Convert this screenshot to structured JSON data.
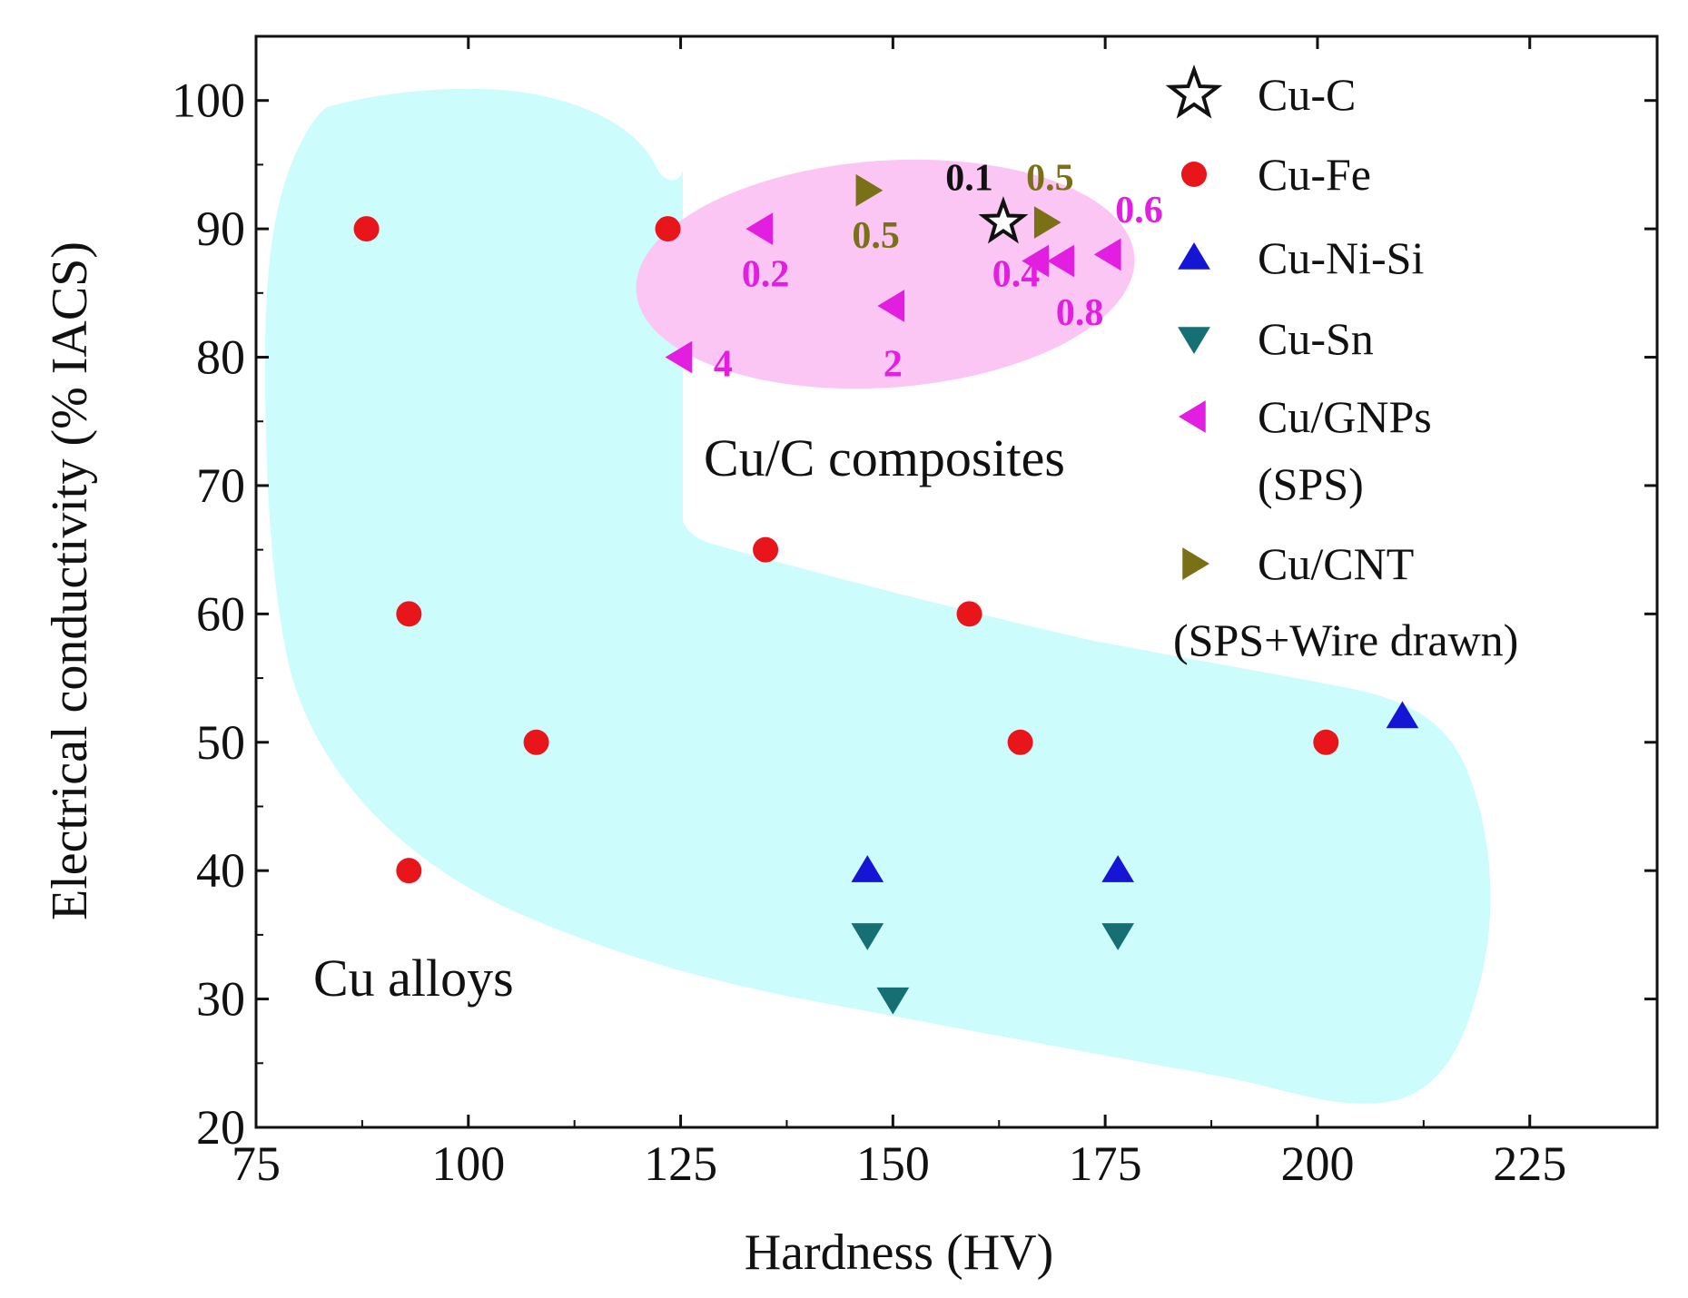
{
  "chart_data": {
    "type": "scatter",
    "title": "",
    "xlabel": "Hardness (HV)",
    "ylabel": "Electrical conductivity (% IACS)",
    "xlim": [
      75,
      240
    ],
    "ylim": [
      20,
      105
    ],
    "xticks": [
      75,
      100,
      125,
      150,
      175,
      200,
      225
    ],
    "yticks": [
      20,
      30,
      40,
      50,
      60,
      70,
      80,
      90,
      100
    ],
    "legend_position": "top-right",
    "series": [
      {
        "name": "Cu-C",
        "marker": "star",
        "color": "#ffffff",
        "stroke": "#111111",
        "points": [
          {
            "x": 163,
            "y": 90.5
          }
        ]
      },
      {
        "name": "Cu-Fe",
        "marker": "circle",
        "color": "#e8151b",
        "points": [
          {
            "x": 88,
            "y": 90
          },
          {
            "x": 123.5,
            "y": 90
          },
          {
            "x": 93,
            "y": 60
          },
          {
            "x": 135,
            "y": 65
          },
          {
            "x": 159,
            "y": 60
          },
          {
            "x": 108,
            "y": 50
          },
          {
            "x": 165,
            "y": 50
          },
          {
            "x": 201,
            "y": 50
          },
          {
            "x": 93,
            "y": 40
          }
        ]
      },
      {
        "name": "Cu-Ni-Si",
        "marker": "triangle-up",
        "color": "#1515d6",
        "points": [
          {
            "x": 147,
            "y": 40
          },
          {
            "x": 176.5,
            "y": 40
          },
          {
            "x": 210,
            "y": 52
          }
        ]
      },
      {
        "name": "Cu-Sn",
        "marker": "triangle-down",
        "color": "#156f73",
        "points": [
          {
            "x": 147,
            "y": 35
          },
          {
            "x": 176.5,
            "y": 35
          },
          {
            "x": 150,
            "y": 30
          }
        ]
      },
      {
        "name": "Cu/GNPs (SPS)",
        "marker": "triangle-left",
        "color": "#e21ee0",
        "points": [
          {
            "x": 134.5,
            "y": 90
          },
          {
            "x": 125,
            "y": 80
          },
          {
            "x": 150,
            "y": 84
          },
          {
            "x": 167,
            "y": 87.5
          },
          {
            "x": 170,
            "y": 87.5
          },
          {
            "x": 175.5,
            "y": 88
          }
        ]
      },
      {
        "name": "Cu/CNT (SPS+Wire drawn)",
        "marker": "triangle-right",
        "color": "#7a7016",
        "points": [
          {
            "x": 147,
            "y": 93
          },
          {
            "x": 168,
            "y": 90.5
          }
        ]
      }
    ],
    "legend": [
      {
        "label": "Cu-C",
        "marker": "star"
      },
      {
        "label": "Cu-Fe",
        "marker": "circle"
      },
      {
        "label": "Cu-Ni-Si",
        "marker": "triangle-up"
      },
      {
        "label": "Cu-Sn",
        "marker": "triangle-down"
      },
      {
        "label": "Cu/GNPs",
        "label2": "(SPS)",
        "marker": "triangle-left"
      },
      {
        "label": "Cu/CNT",
        "label2": "(SPS+Wire drawn)",
        "marker": "triangle-right"
      }
    ],
    "regions": [
      {
        "label": "Cu alloys",
        "color": "#cdfcfd"
      },
      {
        "label": "Cu/C composites",
        "color": "#fbc6f4"
      }
    ],
    "annotations": [
      {
        "text": "0.1",
        "x": 159,
        "y": 94,
        "color": "#111111"
      },
      {
        "text": "0.5",
        "x": 168.5,
        "y": 94,
        "color": "#7a7016"
      },
      {
        "text": "0.6",
        "x": 179,
        "y": 91.5,
        "color": "#e21ee0"
      },
      {
        "text": "0.5",
        "x": 148,
        "y": 89.5,
        "color": "#7a7016"
      },
      {
        "text": "0.2",
        "x": 135,
        "y": 86.5,
        "color": "#e21ee0"
      },
      {
        "text": "0.4",
        "x": 164.5,
        "y": 86.5,
        "color": "#e21ee0"
      },
      {
        "text": "0.8",
        "x": 172,
        "y": 83.5,
        "color": "#e21ee0"
      },
      {
        "text": "2",
        "x": 150,
        "y": 79.5,
        "color": "#e21ee0"
      },
      {
        "text": "4",
        "x": 130,
        "y": 79.5,
        "color": "#e21ee0"
      }
    ]
  }
}
